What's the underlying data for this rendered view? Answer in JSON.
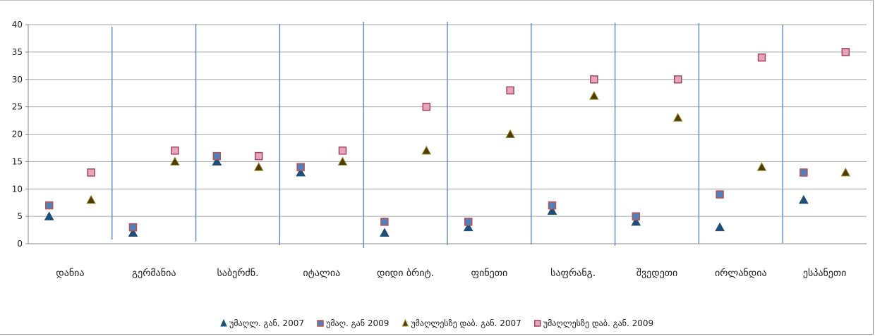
{
  "chart_data": {
    "type": "scatter",
    "categories": [
      "დანია",
      "გერმანია",
      "საბერძნ.",
      "იტალია",
      "დიდი ბრიტ.",
      "ფინეთი",
      "საფრანგ.",
      "შვედეთი",
      "ირლანდია",
      "ესპანეთი"
    ],
    "ylim": [
      0,
      40
    ],
    "yticks": [
      "0",
      "5",
      "10",
      "15",
      "20",
      "25",
      "30",
      "35",
      "40"
    ],
    "grid": true,
    "legend_position": "bottom",
    "series": [
      {
        "name": "უმაღლ. გან. 2007",
        "marker": "triangle",
        "color": "#1f4e79",
        "slot": 0,
        "values": [
          5,
          2,
          15,
          13,
          2,
          3,
          6,
          4,
          3,
          8
        ]
      },
      {
        "name": "უმაღ. გან 2009",
        "marker": "square",
        "color": "#4f81bd",
        "edge": "#c0504d",
        "slot": 0,
        "values": [
          7,
          3,
          16,
          14,
          4,
          4,
          7,
          5,
          9,
          13
        ]
      },
      {
        "name": "უმაღლესზე დაბ. გან. 2007",
        "marker": "triangle",
        "color": "#4d3b00",
        "edge": "#9b8a33",
        "slot": 1,
        "values": [
          8,
          15,
          14,
          15,
          17,
          20,
          27,
          23,
          14,
          13
        ]
      },
      {
        "name": "უმაღლესზე დაბ. გან. 2009",
        "marker": "square",
        "color": "#e6a6b4",
        "edge": "#a0436b",
        "slot": 1,
        "values": [
          13,
          17,
          16,
          17,
          25,
          28,
          30,
          30,
          34,
          35
        ]
      }
    ],
    "colors": {
      "grid": "#a6a6a6",
      "separator": "#4f81bd",
      "axis": "#888888"
    }
  }
}
